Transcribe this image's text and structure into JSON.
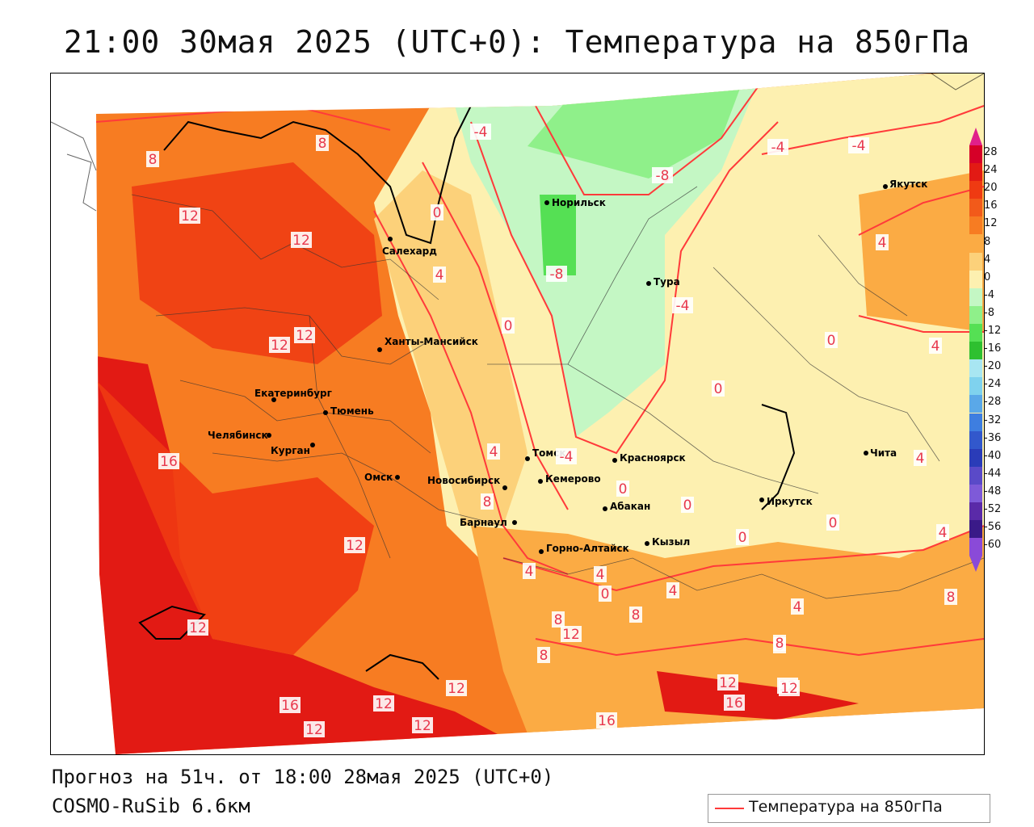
{
  "title": "21:00 30мая 2025 (UTC+0): Температура на 850гПа",
  "footer": {
    "forecast": "Прогноз на 51ч. от 18:00 28мая 2025 (UTC+0)",
    "model": "COSMO-RuSib 6.6км"
  },
  "legend": {
    "label": "Температура на 850гПа",
    "line_color": "#ff3a3a"
  },
  "color_scale": {
    "labels": [
      "28",
      "24",
      "20",
      "16",
      "12",
      "8",
      "4",
      "0",
      "-4",
      "-8",
      "-12",
      "-16",
      "-20",
      "-24",
      "-28",
      "-32",
      "-36",
      "-40",
      "-44",
      "-48",
      "-52",
      "-56",
      "-60"
    ],
    "colors": [
      "#d60028",
      "#e21a14",
      "#ef3a12",
      "#f25a1a",
      "#f77c22",
      "#fbab44",
      "#fcd17a",
      "#fdf0b0",
      "#c4f7c4",
      "#8ff08a",
      "#55e054",
      "#2ec030",
      "#a8e6f2",
      "#7fd2ee",
      "#5aa8e8",
      "#3e7ee0",
      "#3258cc",
      "#2a3cb8",
      "#5a4ac8",
      "#7e5ad8",
      "#5a2aa8",
      "#3a1a88",
      "#8a4ad8"
    ]
  },
  "cities": [
    {
      "name": "Норильск"
    },
    {
      "name": "Якутск"
    },
    {
      "name": "Салехард"
    },
    {
      "name": "Тура"
    },
    {
      "name": "Ханты-Мансийск"
    },
    {
      "name": "Екатеринбург"
    },
    {
      "name": "Тюмень"
    },
    {
      "name": "Челябинск"
    },
    {
      "name": "Курган"
    },
    {
      "name": "Омск"
    },
    {
      "name": "Новосибирск"
    },
    {
      "name": "Томск"
    },
    {
      "name": "Кемерово"
    },
    {
      "name": "Красноярск"
    },
    {
      "name": "Барнаул"
    },
    {
      "name": "Абакан"
    },
    {
      "name": "Горно-Алтайск"
    },
    {
      "name": "Кызыл"
    },
    {
      "name": "Иркутск"
    },
    {
      "name": "Чита"
    }
  ],
  "isotherm_labels": [
    "8",
    "8",
    "-4",
    "-4",
    "0",
    "12",
    "12",
    "-8",
    "-8",
    "4",
    "-4",
    "4",
    "0",
    "12",
    "12",
    "-4",
    "0",
    "4",
    "0",
    "4",
    "16",
    "8",
    "12",
    "0",
    "-4",
    "0",
    "0",
    "0",
    "0",
    "4",
    "4",
    "4",
    "4",
    "4",
    "8",
    "8",
    "8",
    "12",
    "16",
    "8",
    "4",
    "12",
    "12",
    "16",
    "12",
    "12",
    "12",
    "16",
    "12",
    "12",
    "8",
    "12",
    "8"
  ]
}
